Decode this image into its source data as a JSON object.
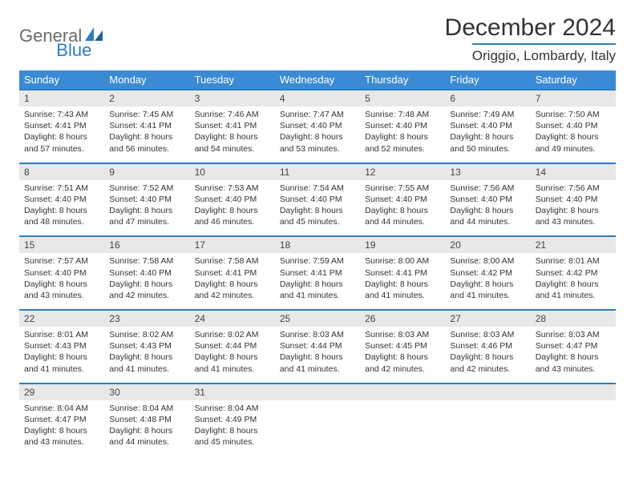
{
  "logo": {
    "text1": "General",
    "text2": "Blue"
  },
  "title": "December 2024",
  "location": "Origgio, Lombardy, Italy",
  "colors": {
    "header_bg": "#3b8bd4",
    "accent_border": "#2d7dc4",
    "daynum_bg": "#e8e8e8",
    "text": "#333333",
    "logo_grey": "#6b6b6b",
    "logo_blue": "#2d7dc4"
  },
  "daynames": [
    "Sunday",
    "Monday",
    "Tuesday",
    "Wednesday",
    "Thursday",
    "Friday",
    "Saturday"
  ],
  "weeks": [
    [
      {
        "n": "1",
        "sr": "Sunrise: 7:43 AM",
        "ss": "Sunset: 4:41 PM",
        "dl": "Daylight: 8 hours and 57 minutes."
      },
      {
        "n": "2",
        "sr": "Sunrise: 7:45 AM",
        "ss": "Sunset: 4:41 PM",
        "dl": "Daylight: 8 hours and 56 minutes."
      },
      {
        "n": "3",
        "sr": "Sunrise: 7:46 AM",
        "ss": "Sunset: 4:41 PM",
        "dl": "Daylight: 8 hours and 54 minutes."
      },
      {
        "n": "4",
        "sr": "Sunrise: 7:47 AM",
        "ss": "Sunset: 4:40 PM",
        "dl": "Daylight: 8 hours and 53 minutes."
      },
      {
        "n": "5",
        "sr": "Sunrise: 7:48 AM",
        "ss": "Sunset: 4:40 PM",
        "dl": "Daylight: 8 hours and 52 minutes."
      },
      {
        "n": "6",
        "sr": "Sunrise: 7:49 AM",
        "ss": "Sunset: 4:40 PM",
        "dl": "Daylight: 8 hours and 50 minutes."
      },
      {
        "n": "7",
        "sr": "Sunrise: 7:50 AM",
        "ss": "Sunset: 4:40 PM",
        "dl": "Daylight: 8 hours and 49 minutes."
      }
    ],
    [
      {
        "n": "8",
        "sr": "Sunrise: 7:51 AM",
        "ss": "Sunset: 4:40 PM",
        "dl": "Daylight: 8 hours and 48 minutes."
      },
      {
        "n": "9",
        "sr": "Sunrise: 7:52 AM",
        "ss": "Sunset: 4:40 PM",
        "dl": "Daylight: 8 hours and 47 minutes."
      },
      {
        "n": "10",
        "sr": "Sunrise: 7:53 AM",
        "ss": "Sunset: 4:40 PM",
        "dl": "Daylight: 8 hours and 46 minutes."
      },
      {
        "n": "11",
        "sr": "Sunrise: 7:54 AM",
        "ss": "Sunset: 4:40 PM",
        "dl": "Daylight: 8 hours and 45 minutes."
      },
      {
        "n": "12",
        "sr": "Sunrise: 7:55 AM",
        "ss": "Sunset: 4:40 PM",
        "dl": "Daylight: 8 hours and 44 minutes."
      },
      {
        "n": "13",
        "sr": "Sunrise: 7:56 AM",
        "ss": "Sunset: 4:40 PM",
        "dl": "Daylight: 8 hours and 44 minutes."
      },
      {
        "n": "14",
        "sr": "Sunrise: 7:56 AM",
        "ss": "Sunset: 4:40 PM",
        "dl": "Daylight: 8 hours and 43 minutes."
      }
    ],
    [
      {
        "n": "15",
        "sr": "Sunrise: 7:57 AM",
        "ss": "Sunset: 4:40 PM",
        "dl": "Daylight: 8 hours and 43 minutes."
      },
      {
        "n": "16",
        "sr": "Sunrise: 7:58 AM",
        "ss": "Sunset: 4:40 PM",
        "dl": "Daylight: 8 hours and 42 minutes."
      },
      {
        "n": "17",
        "sr": "Sunrise: 7:58 AM",
        "ss": "Sunset: 4:41 PM",
        "dl": "Daylight: 8 hours and 42 minutes."
      },
      {
        "n": "18",
        "sr": "Sunrise: 7:59 AM",
        "ss": "Sunset: 4:41 PM",
        "dl": "Daylight: 8 hours and 41 minutes."
      },
      {
        "n": "19",
        "sr": "Sunrise: 8:00 AM",
        "ss": "Sunset: 4:41 PM",
        "dl": "Daylight: 8 hours and 41 minutes."
      },
      {
        "n": "20",
        "sr": "Sunrise: 8:00 AM",
        "ss": "Sunset: 4:42 PM",
        "dl": "Daylight: 8 hours and 41 minutes."
      },
      {
        "n": "21",
        "sr": "Sunrise: 8:01 AM",
        "ss": "Sunset: 4:42 PM",
        "dl": "Daylight: 8 hours and 41 minutes."
      }
    ],
    [
      {
        "n": "22",
        "sr": "Sunrise: 8:01 AM",
        "ss": "Sunset: 4:43 PM",
        "dl": "Daylight: 8 hours and 41 minutes."
      },
      {
        "n": "23",
        "sr": "Sunrise: 8:02 AM",
        "ss": "Sunset: 4:43 PM",
        "dl": "Daylight: 8 hours and 41 minutes."
      },
      {
        "n": "24",
        "sr": "Sunrise: 8:02 AM",
        "ss": "Sunset: 4:44 PM",
        "dl": "Daylight: 8 hours and 41 minutes."
      },
      {
        "n": "25",
        "sr": "Sunrise: 8:03 AM",
        "ss": "Sunset: 4:44 PM",
        "dl": "Daylight: 8 hours and 41 minutes."
      },
      {
        "n": "26",
        "sr": "Sunrise: 8:03 AM",
        "ss": "Sunset: 4:45 PM",
        "dl": "Daylight: 8 hours and 42 minutes."
      },
      {
        "n": "27",
        "sr": "Sunrise: 8:03 AM",
        "ss": "Sunset: 4:46 PM",
        "dl": "Daylight: 8 hours and 42 minutes."
      },
      {
        "n": "28",
        "sr": "Sunrise: 8:03 AM",
        "ss": "Sunset: 4:47 PM",
        "dl": "Daylight: 8 hours and 43 minutes."
      }
    ],
    [
      {
        "n": "29",
        "sr": "Sunrise: 8:04 AM",
        "ss": "Sunset: 4:47 PM",
        "dl": "Daylight: 8 hours and 43 minutes."
      },
      {
        "n": "30",
        "sr": "Sunrise: 8:04 AM",
        "ss": "Sunset: 4:48 PM",
        "dl": "Daylight: 8 hours and 44 minutes."
      },
      {
        "n": "31",
        "sr": "Sunrise: 8:04 AM",
        "ss": "Sunset: 4:49 PM",
        "dl": "Daylight: 8 hours and 45 minutes."
      },
      null,
      null,
      null,
      null
    ]
  ]
}
